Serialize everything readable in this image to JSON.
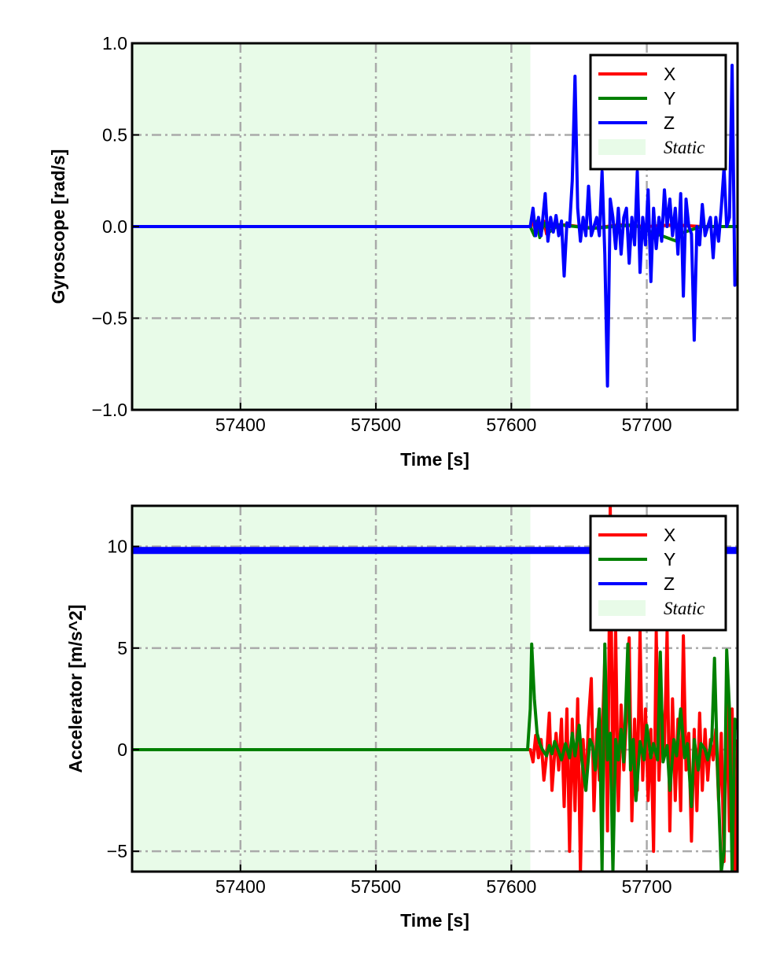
{
  "chart_data": [
    {
      "type": "line",
      "xlabel": "Time [s]",
      "ylabel": "Gyroscope [rad/s]",
      "xlim": [
        57320,
        57767
      ],
      "ylim": [
        -1.0,
        1.0
      ],
      "xticks": [
        57400,
        57500,
        57600,
        57700
      ],
      "xtick_labels": [
        "57400",
        "57500",
        "57600",
        "57700"
      ],
      "yticks": [
        -1.0,
        -0.5,
        0.0,
        0.5,
        1.0
      ],
      "ytick_labels": [
        "−1.0",
        "−0.5",
        "0.0",
        "0.5",
        "1.0"
      ],
      "grid": true,
      "legend_position": "top-right",
      "static_region": {
        "label": "Static",
        "x": [
          57320,
          57614
        ],
        "color": "#e8fbe8"
      },
      "series": [
        {
          "name": "X",
          "color": "#ff0000",
          "width": 4,
          "x": [
            57320,
            57614,
            57616,
            57618,
            57620,
            57622,
            57624,
            57626,
            57628,
            57630,
            57640,
            57660,
            57680,
            57700,
            57720,
            57740,
            57767
          ],
          "y": [
            0,
            0,
            0.03,
            -0.03,
            0.04,
            -0.02,
            0.03,
            -0.04,
            0.02,
            0.0,
            0.01,
            -0.01,
            0.01,
            0.0,
            0.01,
            0.0,
            0.0
          ]
        },
        {
          "name": "Y",
          "color": "#008000",
          "width": 4,
          "x": [
            57320,
            57614,
            57617,
            57619,
            57621,
            57624,
            57628,
            57635,
            57660,
            57690,
            57700,
            57722,
            57723,
            57724,
            57740,
            57767
          ],
          "y": [
            0,
            0,
            -0.05,
            0.03,
            -0.06,
            0.02,
            -0.03,
            0.01,
            -0.01,
            0.01,
            -0.02,
            -0.08,
            0.0,
            -0.04,
            0.0,
            0.0
          ]
        },
        {
          "name": "Z",
          "color": "#0000ff",
          "width": 4,
          "x": [
            57320,
            57614,
            57616,
            57618,
            57620,
            57622,
            57625,
            57627,
            57629,
            57631,
            57633,
            57635,
            57637,
            57639,
            57641,
            57643,
            57645,
            57647,
            57649,
            57651,
            57653,
            57655,
            57657,
            57659,
            57661,
            57663,
            57665,
            57667,
            57669,
            57671,
            57673,
            57675,
            57677,
            57679,
            57681,
            57683,
            57685,
            57687,
            57689,
            57691,
            57693,
            57695,
            57697,
            57699,
            57701,
            57703,
            57705,
            57707,
            57709,
            57711,
            57713,
            57715,
            57717,
            57719,
            57721,
            57723,
            57725,
            57727,
            57729,
            57731,
            57733,
            57735,
            57737,
            57739,
            57741,
            57743,
            57745,
            57747,
            57749,
            57751,
            57753,
            57755,
            57757,
            57759,
            57761,
            57763,
            57765,
            57767
          ],
          "y": [
            0,
            0,
            0.1,
            -0.05,
            0.05,
            -0.05,
            0.18,
            -0.08,
            0.05,
            -0.03,
            0.06,
            -0.05,
            0.03,
            -0.27,
            0.02,
            0.0,
            0.25,
            0.82,
            0.1,
            -0.08,
            0.05,
            -0.05,
            0.22,
            -0.05,
            0.0,
            0.05,
            -0.05,
            0.3,
            -0.15,
            -0.87,
            0.15,
            0.05,
            -0.12,
            0.1,
            -0.15,
            0.05,
            0.1,
            -0.2,
            0.05,
            -0.1,
            0.3,
            -0.25,
            0.05,
            -0.1,
            0.2,
            -0.3,
            0.1,
            -0.12,
            0.05,
            -0.08,
            0.2,
            0.0,
            0.15,
            -0.05,
            0.1,
            -0.15,
            0.18,
            -0.38,
            0.15,
            0.0,
            -0.04,
            -0.62,
            0.0,
            -0.1,
            0.12,
            -0.05,
            0.0,
            0.05,
            -0.17,
            0.05,
            -0.08,
            0.1,
            0.32,
            0.0,
            0.05,
            0.88,
            -0.32,
            -0.3
          ]
        }
      ]
    },
    {
      "type": "line",
      "xlabel": "Time [s]",
      "ylabel": "Accelerator [m/s^2]",
      "xlim": [
        57320,
        57767
      ],
      "ylim": [
        -6.0,
        12.0
      ],
      "xticks": [
        57400,
        57500,
        57600,
        57700
      ],
      "xtick_labels": [
        "57400",
        "57500",
        "57600",
        "57700"
      ],
      "yticks": [
        -5,
        0,
        5,
        10
      ],
      "ytick_labels": [
        "−5",
        "0",
        "5",
        "10"
      ],
      "grid": true,
      "legend_position": "top-right",
      "static_region": {
        "label": "Static",
        "x": [
          57320,
          57614
        ],
        "color": "#e8fbe8"
      },
      "series": [
        {
          "name": "X",
          "color": "#ff0000",
          "width": 4,
          "x": [
            57320,
            57614,
            57616,
            57618,
            57620,
            57622,
            57624,
            57626,
            57628,
            57630,
            57633,
            57635,
            57637,
            57639,
            57641,
            57643,
            57645,
            57647,
            57649,
            57651,
            57653,
            57655,
            57657,
            57659,
            57661,
            57663,
            57665,
            57667,
            57669,
            57671,
            57673,
            57675,
            57677,
            57679,
            57681,
            57683,
            57685,
            57687,
            57689,
            57691,
            57693,
            57695,
            57697,
            57699,
            57701,
            57703,
            57705,
            57707,
            57709,
            57711,
            57713,
            57715,
            57717,
            57719,
            57721,
            57723,
            57725,
            57727,
            57729,
            57731,
            57733,
            57735,
            57737,
            57739,
            57741,
            57743,
            57745,
            57747,
            57749,
            57751,
            57753,
            57755,
            57757,
            57759,
            57761,
            57763,
            57765,
            57767
          ],
          "y": [
            0,
            0,
            -0.6,
            0.7,
            -0.4,
            0.5,
            -1.5,
            -0.3,
            1.8,
            -2.0,
            0.8,
            -1.0,
            1.5,
            -2.8,
            2.0,
            -5.0,
            1.5,
            -3.0,
            2.5,
            -6.0,
            0.5,
            -2.0,
            1.5,
            3.5,
            -3.0,
            1.0,
            -1.5,
            0.5,
            4.5,
            -4.0,
            12.0,
            -2.0,
            5.8,
            -3.0,
            2.2,
            -1.0,
            1.5,
            5.5,
            -3.5,
            1.5,
            -2.0,
            5.8,
            -1.5,
            2.0,
            -2.5,
            1.0,
            -5.0,
            5.8,
            -1.5,
            2.0,
            0.0,
            5.8,
            -4.0,
            2.5,
            -2.5,
            1.5,
            -3.0,
            5.6,
            -1.0,
            0.8,
            -4.5,
            1.0,
            -3.0,
            1.8,
            -2.0,
            1.0,
            -1.5,
            0.5,
            -0.5,
            1.0,
            -2.5,
            0.8,
            -5.5,
            3.0,
            -4.0,
            2.0,
            -6.0,
            0.5
          ]
        },
        {
          "name": "Y",
          "color": "#008000",
          "width": 4,
          "x": [
            57320,
            57612,
            57614,
            57615,
            57617,
            57619,
            57621,
            57623,
            57626,
            57628,
            57630,
            57632,
            57635,
            57637,
            57640,
            57643,
            57645,
            57647,
            57650,
            57652,
            57655,
            57658,
            57660,
            57662,
            57665,
            57667,
            57669,
            57671,
            57673,
            57675,
            57677,
            57679,
            57681,
            57683,
            57686,
            57688,
            57690,
            57692,
            57695,
            57698,
            57700,
            57703,
            57705,
            57708,
            57710,
            57712,
            57715,
            57717,
            57720,
            57722,
            57725,
            57728,
            57730,
            57733,
            57735,
            57738,
            57740,
            57743,
            57745,
            57748,
            57750,
            57752,
            57755,
            57757,
            57759,
            57761,
            57763,
            57765,
            57767
          ],
          "y": [
            0,
            0,
            2.0,
            5.2,
            2.5,
            0.8,
            0.3,
            0.0,
            -0.3,
            0.2,
            -0.2,
            0.4,
            -0.1,
            -0.5,
            0.3,
            -0.4,
            0.8,
            -0.3,
            1.2,
            -0.5,
            -2.0,
            0.5,
            0.2,
            -1.0,
            2.0,
            -6.0,
            5.2,
            -0.5,
            0.8,
            -6.0,
            0.5,
            -0.5,
            1.0,
            -0.6,
            5.2,
            -1.0,
            0.5,
            -2.5,
            0.4,
            -0.5,
            1.2,
            -0.4,
            0.3,
            -0.5,
            4.8,
            -0.6,
            0.2,
            -2.0,
            0.5,
            -0.3,
            2.0,
            -0.4,
            0.3,
            -2.8,
            0.5,
            -1.0,
            0.3,
            0.0,
            -0.5,
            0.5,
            4.5,
            -0.5,
            -6.0,
            -5.0,
            4.9,
            2.0,
            -6.0,
            1.5,
            1.0
          ]
        },
        {
          "name": "Z",
          "color": "#0000ff",
          "width": 9,
          "x": [
            57320,
            57767
          ],
          "y": [
            9.8,
            9.8
          ]
        }
      ]
    }
  ]
}
